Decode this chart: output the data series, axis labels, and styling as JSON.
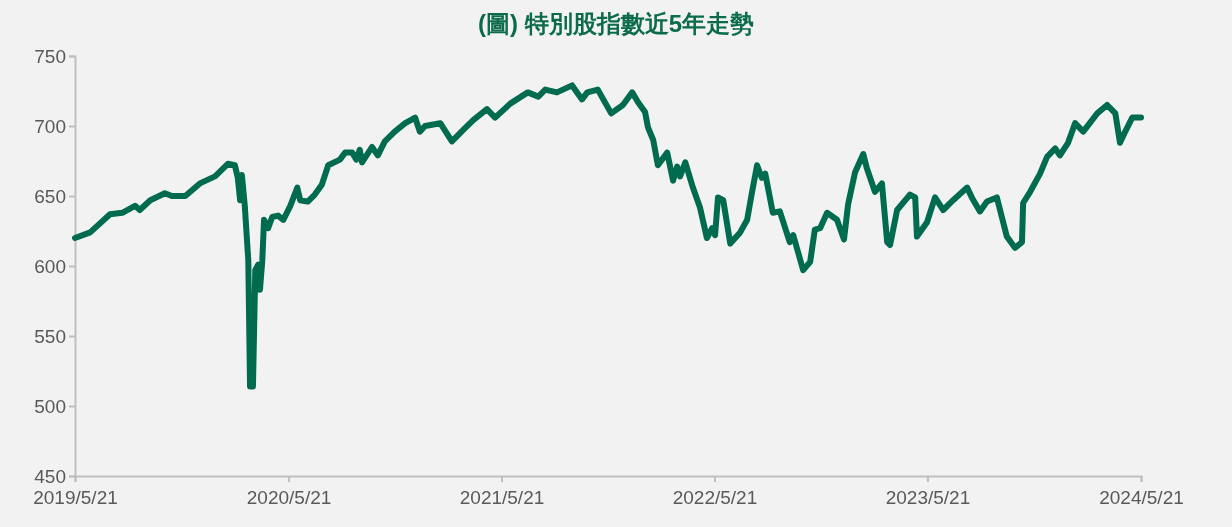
{
  "chart_data": {
    "type": "line",
    "title": "(圖) 特別股指數近5年走勢",
    "x": [
      "2019-05-21",
      "2019-06-16",
      "2019-07-20",
      "2019-08-10",
      "2019-09-01",
      "2019-09-09",
      "2019-09-27",
      "2019-10-22",
      "2019-11-03",
      "2019-11-26",
      "2019-12-21",
      "2020-01-16",
      "2020-02-07",
      "2020-02-19",
      "2020-02-24",
      "2020-02-28",
      "2020-03-02",
      "2020-03-07",
      "2020-03-13",
      "2020-03-16",
      "2020-03-21",
      "2020-03-25",
      "2020-03-30",
      "2020-04-02",
      "2020-04-06",
      "2020-04-09",
      "2020-04-16",
      "2020-04-23",
      "2020-05-03",
      "2020-05-12",
      "2020-05-24",
      "2020-06-05",
      "2020-06-10",
      "2020-06-23",
      "2020-07-05",
      "2020-07-17",
      "2020-07-28",
      "2020-08-17",
      "2020-08-26",
      "2020-09-07",
      "2020-09-14",
      "2020-09-20",
      "2020-09-24",
      "2020-10-11",
      "2020-10-21",
      "2020-11-02",
      "2020-11-19",
      "2020-12-07",
      "2020-12-24",
      "2021-01-01",
      "2021-01-10",
      "2021-02-05",
      "2021-02-25",
      "2021-03-16",
      "2021-04-02",
      "2021-04-26",
      "2021-05-10",
      "2021-06-05",
      "2021-07-05",
      "2021-07-23",
      "2021-08-04",
      "2021-08-24",
      "2021-09-19",
      "2021-10-06",
      "2021-10-15",
      "2021-11-02",
      "2021-11-25",
      "2021-12-15",
      "2021-12-31",
      "2022-01-10",
      "2022-01-22",
      "2022-01-27",
      "2022-02-05",
      "2022-02-13",
      "2022-03-01",
      "2022-03-11",
      "2022-03-18",
      "2022-03-23",
      "2022-04-01",
      "2022-04-14",
      "2022-04-26",
      "2022-05-08",
      "2022-05-17",
      "2022-05-22",
      "2022-05-27",
      "2022-06-05",
      "2022-06-17",
      "2022-07-04",
      "2022-07-16",
      "2022-07-24",
      "2022-08-02",
      "2022-08-10",
      "2022-08-16",
      "2022-08-29",
      "2022-09-10",
      "2022-09-27",
      "2022-10-03",
      "2022-10-20",
      "2022-11-01",
      "2022-11-09",
      "2022-11-18",
      "2022-11-30",
      "2022-12-17",
      "2022-12-29",
      "2023-01-05",
      "2023-01-17",
      "2023-01-31",
      "2023-02-06",
      "2023-02-20",
      "2023-03-04",
      "2023-03-13",
      "2023-03-18",
      "2023-03-30",
      "2023-04-21",
      "2023-04-30",
      "2023-05-03",
      "2023-05-20",
      "2023-06-03",
      "2023-06-17",
      "2023-07-04",
      "2023-07-28",
      "2023-08-05",
      "2023-08-19",
      "2023-08-31",
      "2023-09-17",
      "2023-10-04",
      "2023-10-18",
      "2023-10-30",
      "2023-11-01",
      "2023-11-13",
      "2023-11-30",
      "2023-12-12",
      "2023-12-26",
      "2024-01-03",
      "2024-01-17",
      "2024-01-29",
      "2024-02-12",
      "2024-03-07",
      "2024-03-24",
      "2024-04-07",
      "2024-04-15",
      "2024-04-24",
      "2024-05-06",
      "2024-05-21"
    ],
    "series": [
      {
        "color": "#006b4f",
        "values": [
          620,
          624,
          637,
          638,
          643,
          640,
          647,
          652,
          650,
          650,
          659,
          664,
          673,
          672,
          663,
          647,
          665,
          643,
          604,
          514,
          514,
          597,
          601,
          583,
          604,
          633,
          627,
          635,
          636,
          633,
          643,
          656,
          647,
          646,
          651,
          658,
          672,
          676,
          681,
          681,
          676,
          683,
          674,
          685,
          679,
          689,
          696,
          702,
          706,
          696,
          700,
          702,
          689,
          697,
          704,
          712,
          706,
          716,
          724,
          721,
          726,
          724,
          729,
          719,
          724,
          726,
          709,
          715,
          724,
          717,
          710,
          699,
          690,
          672,
          681,
          661,
          671,
          664,
          674,
          656,
          642,
          620,
          627,
          622,
          649,
          647,
          616,
          624,
          633,
          652,
          672,
          663,
          666,
          638,
          639,
          617,
          622,
          597,
          603,
          626,
          627,
          638,
          633,
          619,
          644,
          667,
          680,
          670,
          653,
          659,
          617,
          615,
          640,
          651,
          649,
          621,
          631,
          649,
          640,
          647,
          656,
          649,
          639,
          646,
          649,
          621,
          613,
          617,
          645,
          653,
          666,
          678,
          684,
          679,
          688,
          702,
          696,
          709,
          715,
          709,
          688,
          696,
          706,
          706
        ]
      }
    ],
    "xlim": [
      "2019-05-21",
      "2024-05-21"
    ],
    "xticks": [
      {
        "value": "2019-05-21",
        "label": "2019/5/21"
      },
      {
        "value": "2020-05-21",
        "label": "2020/5/21"
      },
      {
        "value": "2021-05-21",
        "label": "2021/5/21"
      },
      {
        "value": "2022-05-21",
        "label": "2022/5/21"
      },
      {
        "value": "2023-05-21",
        "label": "2023/5/21"
      },
      {
        "value": "2024-05-21",
        "label": "2024/5/21"
      }
    ],
    "ylim": [
      450,
      750
    ],
    "yticks": [
      450,
      500,
      550,
      600,
      650,
      700,
      750
    ]
  }
}
